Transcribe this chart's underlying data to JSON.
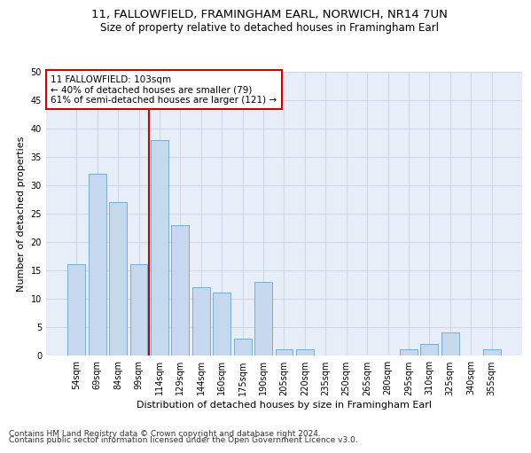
{
  "title1": "11, FALLOWFIELD, FRAMINGHAM EARL, NORWICH, NR14 7UN",
  "title2": "Size of property relative to detached houses in Framingham Earl",
  "xlabel": "Distribution of detached houses by size in Framingham Earl",
  "ylabel": "Number of detached properties",
  "categories": [
    "54sqm",
    "69sqm",
    "84sqm",
    "99sqm",
    "114sqm",
    "129sqm",
    "144sqm",
    "160sqm",
    "175sqm",
    "190sqm",
    "205sqm",
    "220sqm",
    "235sqm",
    "250sqm",
    "265sqm",
    "280sqm",
    "295sqm",
    "310sqm",
    "325sqm",
    "340sqm",
    "355sqm"
  ],
  "values": [
    16,
    32,
    27,
    16,
    38,
    23,
    12,
    11,
    3,
    13,
    1,
    1,
    0,
    0,
    0,
    0,
    1,
    2,
    4,
    0,
    1
  ],
  "bar_color": "#c5d8ed",
  "bar_edge_color": "#7aadd4",
  "vline_color": "#cc0000",
  "annotation_text_line1": "11 FALLOWFIELD: 103sqm",
  "annotation_text_line2": "← 40% of detached houses are smaller (79)",
  "annotation_text_line3": "61% of semi-detached houses are larger (121) →",
  "annotation_box_color": "#cc0000",
  "ylim": [
    0,
    50
  ],
  "yticks": [
    0,
    5,
    10,
    15,
    20,
    25,
    30,
    35,
    40,
    45,
    50
  ],
  "grid_color": "#d0d8e8",
  "background_color": "#e8eef8",
  "footnote1": "Contains HM Land Registry data © Crown copyright and database right 2024.",
  "footnote2": "Contains public sector information licensed under the Open Government Licence v3.0.",
  "title1_fontsize": 9.5,
  "title2_fontsize": 8.5,
  "xlabel_fontsize": 8,
  "ylabel_fontsize": 8,
  "tick_fontsize": 7,
  "annotation_fontsize": 7.5,
  "footnote_fontsize": 6.5
}
